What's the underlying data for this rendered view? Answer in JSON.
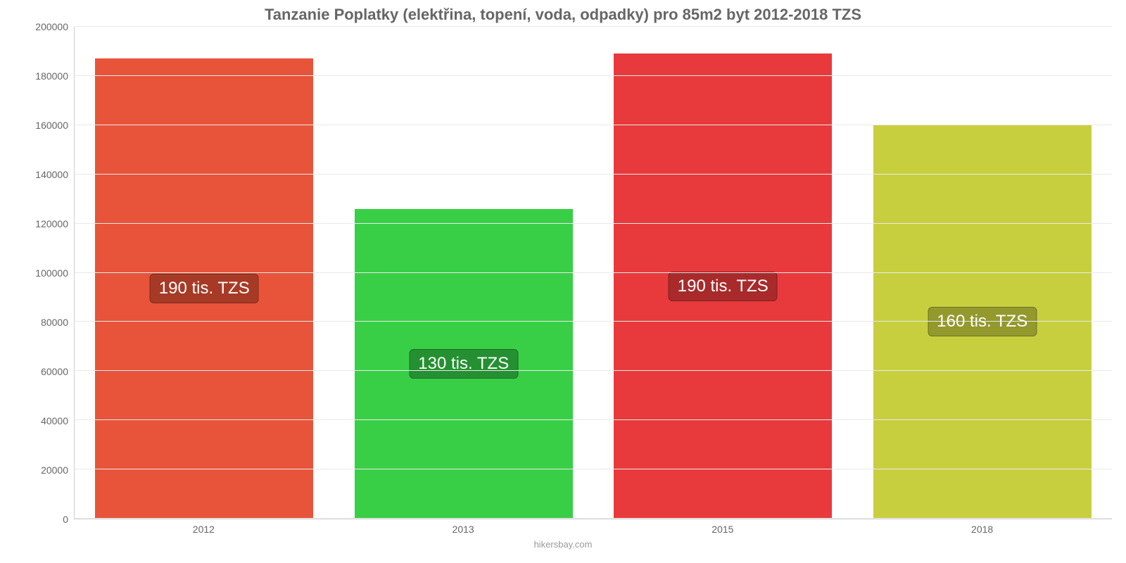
{
  "chart": {
    "type": "bar",
    "title": "Tanzanie Poplatky (elektřina, topení, voda, odpadky) pro 85m2 byt 2012-2018 TZS",
    "title_fontsize": 22,
    "title_color": "#666666",
    "categories": [
      "2012",
      "2013",
      "2015",
      "2018"
    ],
    "values": [
      187000,
      126000,
      189000,
      160000
    ],
    "value_labels": [
      "190 tis. TZS",
      "130 tis. TZS",
      "190 tis. TZS",
      "160 tis. TZS"
    ],
    "bar_colors": [
      "#e7543a",
      "#38cf46",
      "#e83a3c",
      "#c8cf3f"
    ],
    "label_bg_colors": [
      "#a73a26",
      "#259031",
      "#a82a2b",
      "#93992d"
    ],
    "ylim": [
      0,
      200000
    ],
    "ytick_step": 20000,
    "yticks": [
      "0",
      "20000",
      "40000",
      "60000",
      "80000",
      "100000",
      "120000",
      "140000",
      "160000",
      "180000",
      "200000"
    ],
    "background_color": "#ffffff",
    "grid_color": "#e9e9e9",
    "axis_label_color": "#666666",
    "axis_label_fontsize": 14,
    "bar_width": 0.84,
    "value_label_fontsize": 24,
    "credit": "hikersbay.com",
    "credit_color": "#999999"
  }
}
